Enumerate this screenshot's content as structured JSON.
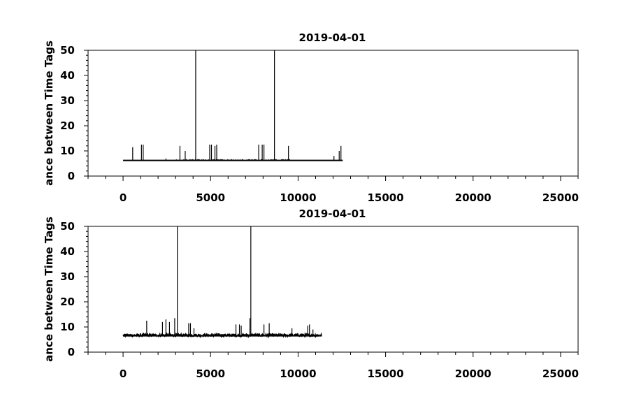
{
  "chart_data": [
    {
      "type": "line",
      "title": "2019-04-01",
      "ylabel": "ance between Time Tags",
      "xlim": [
        -2000,
        26000
      ],
      "ylim": [
        0,
        50
      ],
      "x_ticks": [
        0,
        5000,
        10000,
        15000,
        20000,
        25000
      ],
      "y_ticks": [
        0,
        10,
        20,
        30,
        40,
        50
      ],
      "grid": false,
      "baseline": 6.2,
      "x_range": [
        0,
        12550
      ],
      "spikes": [
        {
          "x": 550,
          "y": 11.5
        },
        {
          "x": 1050,
          "y": 12.5
        },
        {
          "x": 1150,
          "y": 12.5
        },
        {
          "x": 2450,
          "y": 7
        },
        {
          "x": 3250,
          "y": 12
        },
        {
          "x": 3550,
          "y": 10
        },
        {
          "x": 4150,
          "y": 50
        },
        {
          "x": 4950,
          "y": 12.5
        },
        {
          "x": 5050,
          "y": 12.5
        },
        {
          "x": 5250,
          "y": 12
        },
        {
          "x": 5350,
          "y": 12.5
        },
        {
          "x": 7750,
          "y": 12.5
        },
        {
          "x": 7950,
          "y": 12.5
        },
        {
          "x": 8050,
          "y": 12.5
        },
        {
          "x": 8650,
          "y": 50
        },
        {
          "x": 9450,
          "y": 12
        },
        {
          "x": 12050,
          "y": 8
        },
        {
          "x": 12350,
          "y": 10
        },
        {
          "x": 12450,
          "y": 12
        }
      ]
    },
    {
      "type": "line",
      "title": "2019-04-01",
      "ylabel": "ance between Time Tags",
      "xlim": [
        -2000,
        26000
      ],
      "ylim": [
        0,
        50
      ],
      "x_ticks": [
        0,
        5000,
        10000,
        15000,
        20000,
        25000
      ],
      "y_ticks": [
        0,
        10,
        20,
        30,
        40,
        50
      ],
      "grid": false,
      "baseline": 6.5,
      "x_range": [
        0,
        11350
      ],
      "spikes": [
        {
          "x": 1350,
          "y": 12.5
        },
        {
          "x": 2250,
          "y": 12
        },
        {
          "x": 2450,
          "y": 13
        },
        {
          "x": 2650,
          "y": 12
        },
        {
          "x": 2950,
          "y": 13.5
        },
        {
          "x": 3100,
          "y": 50
        },
        {
          "x": 3750,
          "y": 11.5
        },
        {
          "x": 3850,
          "y": 11.5
        },
        {
          "x": 4050,
          "y": 9.5
        },
        {
          "x": 6450,
          "y": 11
        },
        {
          "x": 6650,
          "y": 11
        },
        {
          "x": 6750,
          "y": 10.5
        },
        {
          "x": 7250,
          "y": 13.5
        },
        {
          "x": 7300,
          "y": 50
        },
        {
          "x": 8050,
          "y": 11
        },
        {
          "x": 8350,
          "y": 11.5
        },
        {
          "x": 9650,
          "y": 9.5
        },
        {
          "x": 10550,
          "y": 10.5
        },
        {
          "x": 10650,
          "y": 11
        },
        {
          "x": 10850,
          "y": 9
        }
      ]
    }
  ]
}
